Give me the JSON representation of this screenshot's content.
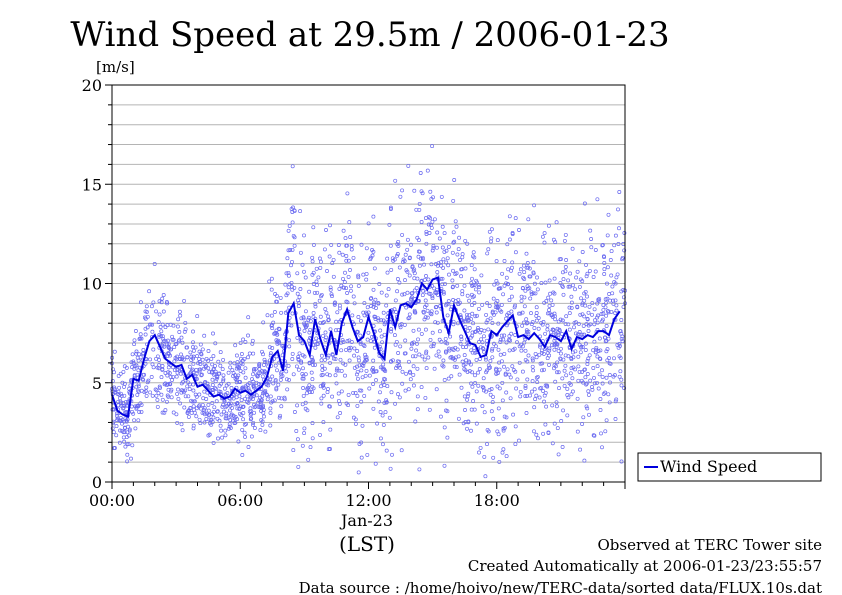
{
  "chart_data": {
    "type": "scatter",
    "title": "Wind Speed at 29.5m / 2006-01-23",
    "ylabel": "[m/s]",
    "xlabel": "(LST)",
    "date_label": "Jan-23",
    "ylim": [
      0,
      20
    ],
    "yticks": [
      "0",
      "5",
      "10",
      "15",
      "20"
    ],
    "xlim_hours": [
      0,
      24
    ],
    "xticks": [
      "00:00",
      "06:00",
      "12:00",
      "18:00"
    ],
    "grid": true,
    "legend": {
      "label": "Wind Speed",
      "position": "right"
    },
    "colors": {
      "line": "#0000dd",
      "points": "#6a6af0",
      "grid": "#b4b4b4"
    },
    "series": [
      {
        "name": "Wind Speed",
        "x_hours": [
          0.0,
          0.25,
          0.5,
          0.75,
          1.0,
          1.25,
          1.5,
          1.75,
          2.0,
          2.25,
          2.5,
          2.75,
          3.0,
          3.25,
          3.5,
          3.75,
          4.0,
          4.25,
          4.5,
          4.75,
          5.0,
          5.25,
          5.5,
          5.75,
          6.0,
          6.25,
          6.5,
          6.75,
          7.0,
          7.25,
          7.5,
          7.75,
          8.0,
          8.25,
          8.5,
          8.75,
          9.0,
          9.25,
          9.5,
          9.75,
          10.0,
          10.25,
          10.5,
          10.75,
          11.0,
          11.25,
          11.5,
          11.75,
          12.0,
          12.25,
          12.5,
          12.75,
          13.0,
          13.25,
          13.5,
          13.75,
          14.0,
          14.25,
          14.5,
          14.75,
          15.0,
          15.25,
          15.5,
          15.75,
          16.0,
          16.25,
          16.5,
          16.75,
          17.0,
          17.25,
          17.5,
          17.75,
          18.0,
          18.25,
          18.5,
          18.75,
          19.0,
          19.25,
          19.5,
          19.75,
          20.0,
          20.25,
          20.5,
          20.75,
          21.0,
          21.25,
          21.5,
          21.75,
          22.0,
          22.25,
          22.5,
          22.75,
          23.0,
          23.25,
          23.5,
          23.75
        ],
        "values": [
          4.4,
          3.6,
          3.4,
          3.3,
          5.2,
          5.1,
          6.2,
          7.1,
          7.4,
          6.8,
          6.2,
          6.0,
          5.8,
          5.9,
          5.2,
          5.4,
          4.8,
          4.9,
          4.6,
          4.3,
          4.4,
          4.2,
          4.3,
          4.7,
          4.5,
          4.6,
          4.4,
          4.6,
          4.8,
          5.3,
          6.3,
          6.6,
          5.6,
          8.5,
          9.0,
          7.4,
          7.1,
          6.4,
          8.2,
          7.2,
          6.4,
          7.6,
          6.4,
          8.0,
          8.7,
          7.8,
          7.1,
          7.3,
          8.3,
          7.5,
          6.5,
          6.2,
          8.7,
          7.8,
          8.9,
          9.0,
          8.8,
          9.2,
          10.0,
          9.7,
          10.2,
          10.3,
          8.3,
          7.5,
          8.9,
          8.2,
          7.6,
          7.0,
          6.9,
          6.3,
          6.4,
          7.6,
          7.4,
          7.8,
          8.1,
          8.4,
          7.3,
          7.4,
          7.2,
          7.5,
          7.2,
          6.8,
          7.4,
          7.3,
          7.1,
          7.6,
          6.7,
          7.3,
          7.2,
          7.4,
          7.3,
          7.6,
          7.6,
          7.4,
          8.2,
          8.6
        ]
      }
    ]
  },
  "footer": {
    "observed": "Observed at TERC Tower site",
    "created": "Created Automatically at 2006-01-23/23:55:57",
    "source": "Data source : /home/hoivo/new/TERC-data/sorted  data/FLUX.10s.dat"
  }
}
